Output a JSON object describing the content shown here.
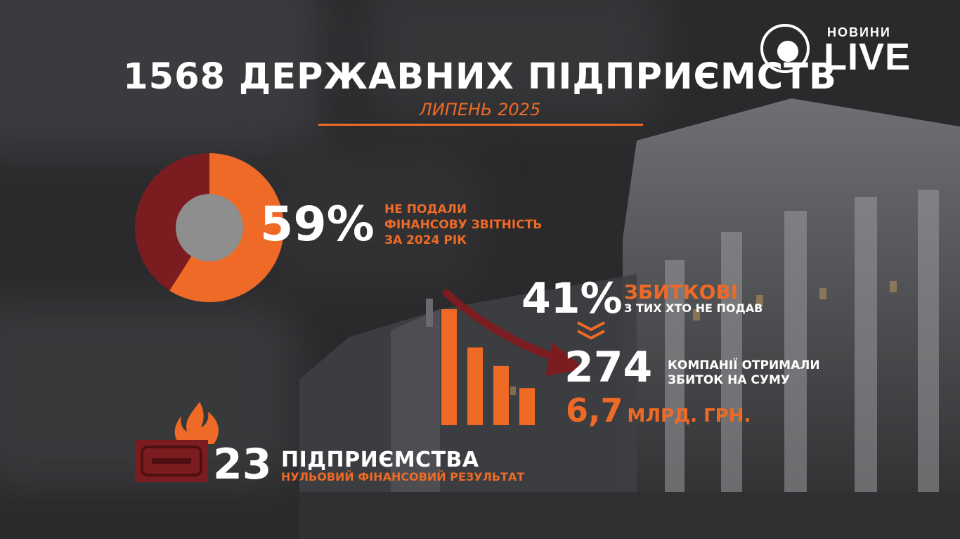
{
  "brand": {
    "small": "НОВИНИ",
    "big": "LIVE"
  },
  "header": {
    "title": "1568 ДЕРЖАВНИХ ПІДПРИЄМСТВ",
    "subtitle": "ЛИПЕНЬ 2025"
  },
  "colors": {
    "accent": "#ee6a26",
    "dark_red": "#7b1c20",
    "donut_hole": "#8e8e8e"
  },
  "stat_59": {
    "value": "59%",
    "line1": "НЕ ПОДАЛИ",
    "line2": "ФІНАНСОВУ ЗВІТНІСТЬ",
    "line3": "ЗА 2024 РІК"
  },
  "stat_41": {
    "value": "41%",
    "label": "ЗБИТКОВІ",
    "sublabel": "З ТИХ ХТО НЕ ПОДАВ"
  },
  "stat_274": {
    "value": "274",
    "line1": "КОМПАНІЇ ОТРИМАЛИ",
    "line2": "ЗБИТОК НА СУМУ",
    "amount": "6,7",
    "amount_unit": "МЛРД. ГРН."
  },
  "stat_23": {
    "value": "23",
    "label": "ПІДПРИЄМСТВА",
    "sublabel": "НУЛЬОВИЙ ФІНАНСОВИЙ РЕЗУЛЬТАТ"
  },
  "decor_bars": [
    1.0,
    0.67,
    0.51,
    0.32
  ],
  "chart_data": {
    "type": "pie",
    "slices": [
      {
        "value": 59,
        "color": "#ee6a26"
      },
      {
        "value": 41,
        "color": "#7b1c20"
      }
    ]
  }
}
